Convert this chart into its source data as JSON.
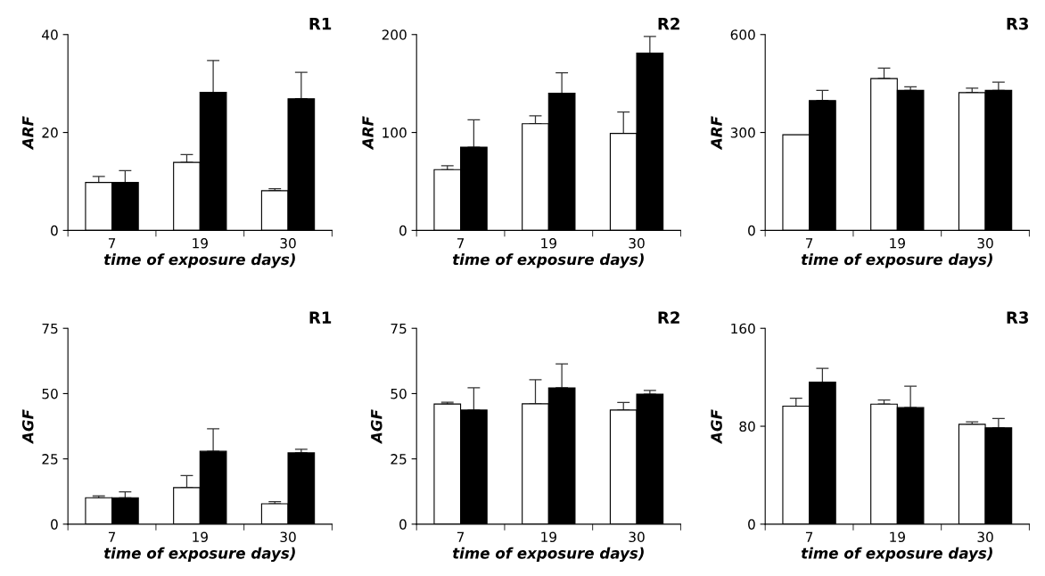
{
  "chart_data": [
    {
      "type": "bar",
      "title": "R1",
      "xlabel": "time of exposure days)",
      "ylabel": "ARF",
      "categories": [
        "7",
        "19",
        "30"
      ],
      "ylim": [
        0,
        40
      ],
      "yticks": [
        0,
        20,
        40
      ],
      "grid": false,
      "series": [
        {
          "color": "#ffffff",
          "values": [
            9.8,
            13.9,
            8.1
          ],
          "errors": [
            [
              9.8,
              11.0
            ],
            [
              13.9,
              15.5
            ],
            [
              8.1,
              8.5
            ]
          ]
        },
        {
          "color": "#000000",
          "values": [
            9.8,
            28.2,
            26.9
          ],
          "errors": [
            [
              9.8,
              12.2
            ],
            [
              28.2,
              34.7
            ],
            [
              26.9,
              32.3
            ]
          ]
        }
      ]
    },
    {
      "type": "bar",
      "title": "R2",
      "xlabel": "time of exposure days)",
      "ylabel": "ARF",
      "categories": [
        "7",
        "19",
        "30"
      ],
      "ylim": [
        0,
        200
      ],
      "yticks": [
        0,
        100,
        200
      ],
      "grid": false,
      "series": [
        {
          "color": "#ffffff",
          "values": [
            62,
            109,
            99
          ],
          "errors": [
            [
              62,
              66
            ],
            [
              109,
              117
            ],
            [
              99,
              121
            ]
          ]
        },
        {
          "color": "#000000",
          "values": [
            85,
            140,
            181
          ],
          "errors": [
            [
              85,
              113
            ],
            [
              140,
              161
            ],
            [
              181,
              198
            ]
          ]
        }
      ]
    },
    {
      "type": "bar",
      "title": "R3",
      "xlabel": "time of exposure days)",
      "ylabel": "ARF",
      "categories": [
        "7",
        "19",
        "30"
      ],
      "ylim": [
        0,
        600
      ],
      "yticks": [
        0,
        300,
        600
      ],
      "grid": false,
      "series": [
        {
          "color": "#ffffff",
          "values": [
            293,
            465,
            422
          ],
          "errors": [
            null,
            [
              465,
              497
            ],
            [
              422,
              436
            ]
          ]
        },
        {
          "color": "#000000",
          "values": [
            398,
            429,
            429
          ],
          "errors": [
            [
              398,
              429
            ],
            [
              429,
              440
            ],
            [
              429,
              454
            ]
          ]
        }
      ]
    },
    {
      "type": "bar",
      "title": "R1",
      "xlabel": "time of exposure days)",
      "ylabel": "AGF",
      "categories": [
        "7",
        "19",
        "30"
      ],
      "ylim": [
        0,
        75
      ],
      "yticks": [
        0,
        25,
        50,
        75
      ],
      "grid": false,
      "series": [
        {
          "color": "#ffffff",
          "values": [
            10.1,
            14.0,
            7.8
          ],
          "errors": [
            [
              10.1,
              10.8
            ],
            [
              14.0,
              18.6
            ],
            [
              7.8,
              8.6
            ]
          ]
        },
        {
          "color": "#000000",
          "values": [
            10.1,
            27.9,
            27.3
          ],
          "errors": [
            [
              10.1,
              12.4
            ],
            [
              27.9,
              36.5
            ],
            [
              27.3,
              28.7
            ]
          ]
        }
      ]
    },
    {
      "type": "bar",
      "title": "R2",
      "xlabel": "time of exposure days)",
      "ylabel": "AGF",
      "categories": [
        "7",
        "19",
        "30"
      ],
      "ylim": [
        0,
        75
      ],
      "yticks": [
        0,
        25,
        50,
        75
      ],
      "grid": false,
      "series": [
        {
          "color": "#ffffff",
          "values": [
            46.0,
            46.1,
            43.7
          ],
          "errors": [
            [
              46.0,
              46.7
            ],
            [
              46.1,
              55.3
            ],
            [
              43.7,
              46.6
            ]
          ]
        },
        {
          "color": "#000000",
          "values": [
            43.7,
            52.2,
            49.8
          ],
          "errors": [
            [
              43.7,
              52.2
            ],
            [
              52.2,
              61.4
            ],
            [
              49.8,
              51.2
            ]
          ]
        }
      ]
    },
    {
      "type": "bar",
      "title": "R3",
      "xlabel": "time of exposure days)",
      "ylabel": "AGF",
      "categories": [
        "7",
        "19",
        "30"
      ],
      "ylim": [
        0,
        160
      ],
      "yticks": [
        0,
        80,
        160
      ],
      "grid": false,
      "series": [
        {
          "color": "#ffffff",
          "values": [
            96.4,
            98.1,
            81.6
          ],
          "errors": [
            [
              96.4,
              102.9
            ],
            [
              98.1,
              101.4
            ],
            [
              81.6,
              83.5
            ]
          ]
        },
        {
          "color": "#000000",
          "values": [
            116,
            95.2,
            78.7
          ],
          "errors": [
            [
              116,
              127.3
            ],
            [
              95.2,
              112.7
            ],
            [
              78.7,
              86.4
            ]
          ]
        }
      ]
    }
  ]
}
